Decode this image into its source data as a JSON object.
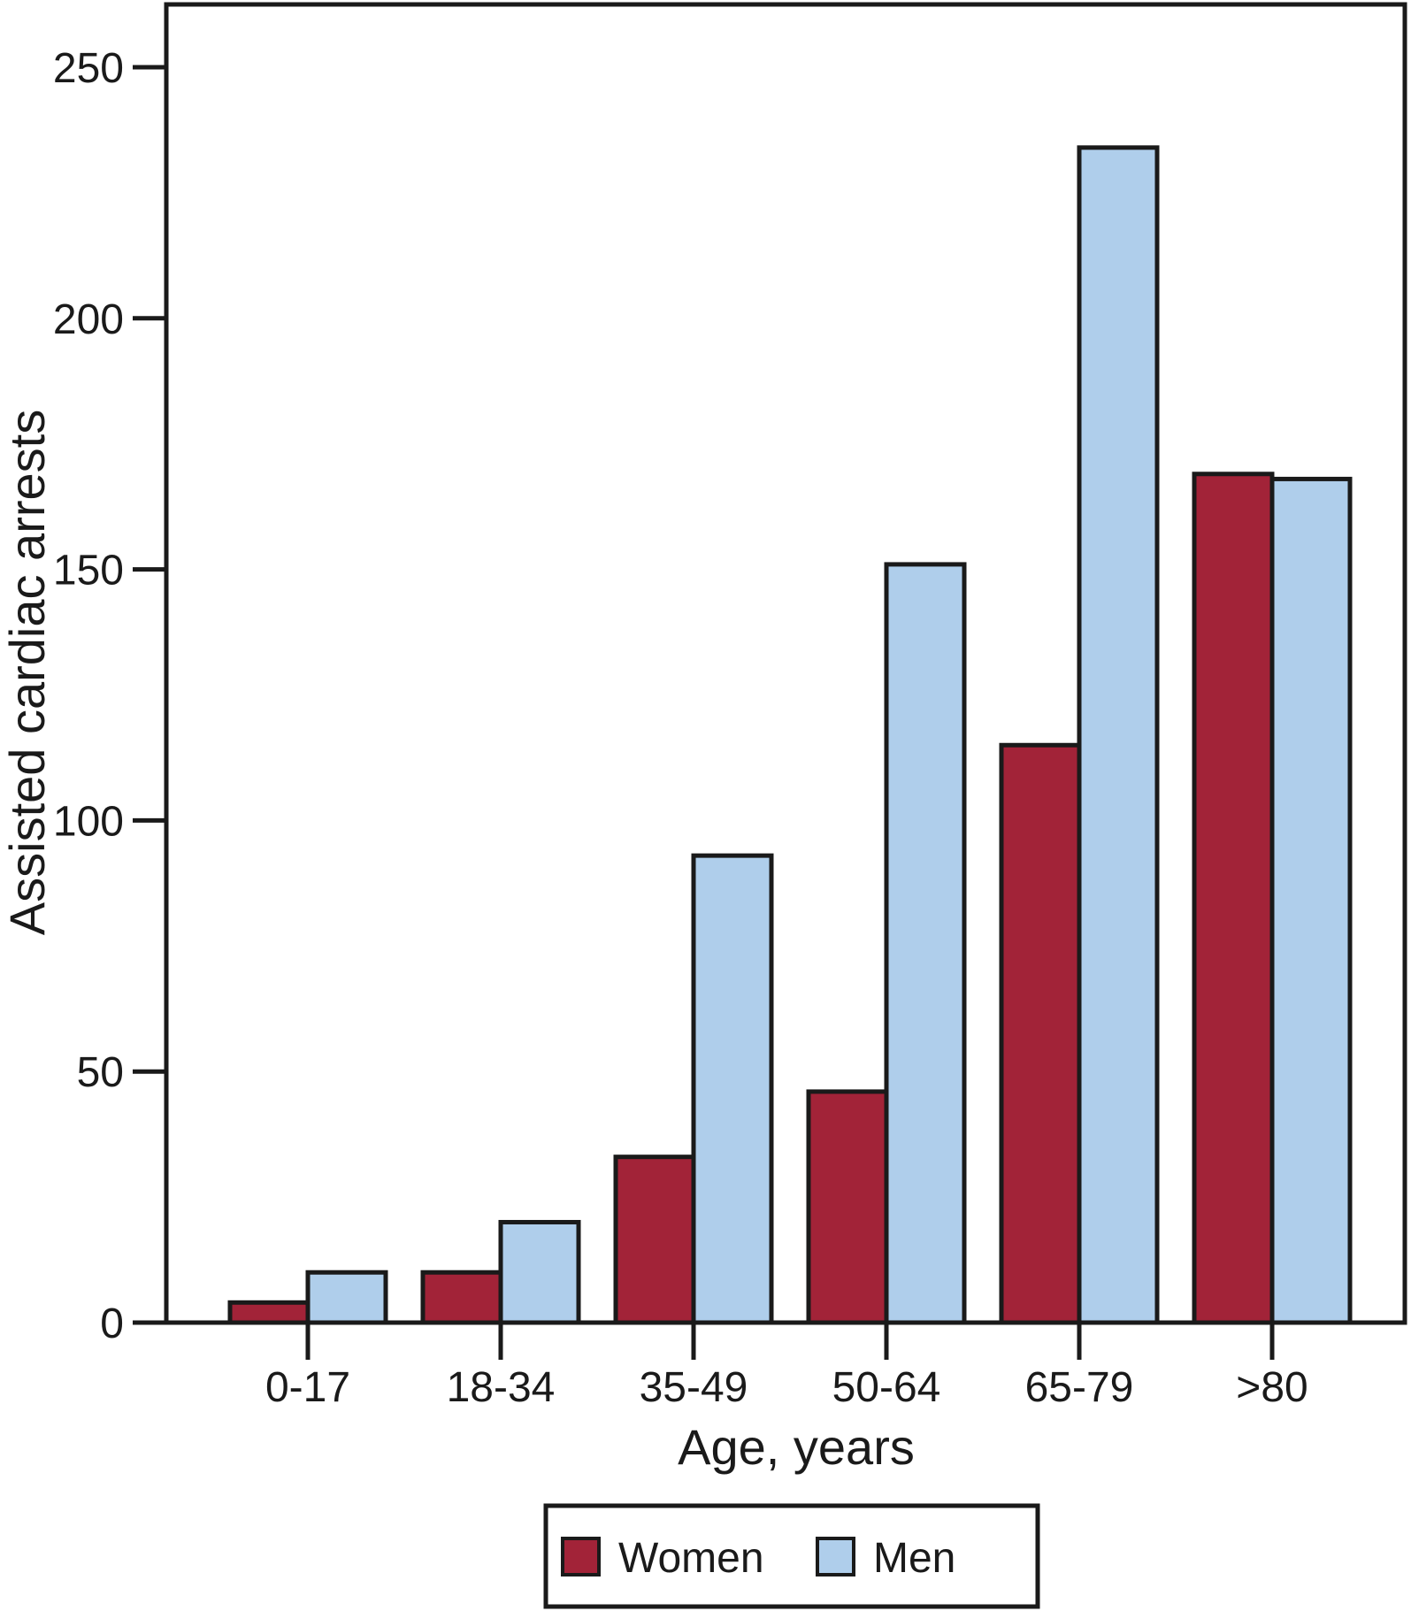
{
  "chart_data": {
    "type": "bar",
    "title": "",
    "categories": [
      "0-17",
      "18-34",
      "35-49",
      "50-64",
      "65-79",
      ">80"
    ],
    "series": [
      {
        "name": "Women",
        "color": "#A22338",
        "values": [
          4,
          10,
          33,
          46,
          115,
          169
        ]
      },
      {
        "name": "Men",
        "color": "#AFCEEB",
        "values": [
          10,
          20,
          93,
          151,
          234,
          168
        ]
      }
    ],
    "xlabel": "Age, years",
    "ylabel": "Assisted cardiac arrests",
    "yticks": [
      0,
      50,
      100,
      150,
      200,
      250
    ],
    "ylim": [
      0,
      262
    ],
    "grid": false,
    "bar_border_color": "#1A1A1A",
    "axis_color": "#1A1A1A",
    "legend": {
      "position": "bottom",
      "border_color": "#1A1A1A",
      "background": "#FFFFFF"
    }
  }
}
